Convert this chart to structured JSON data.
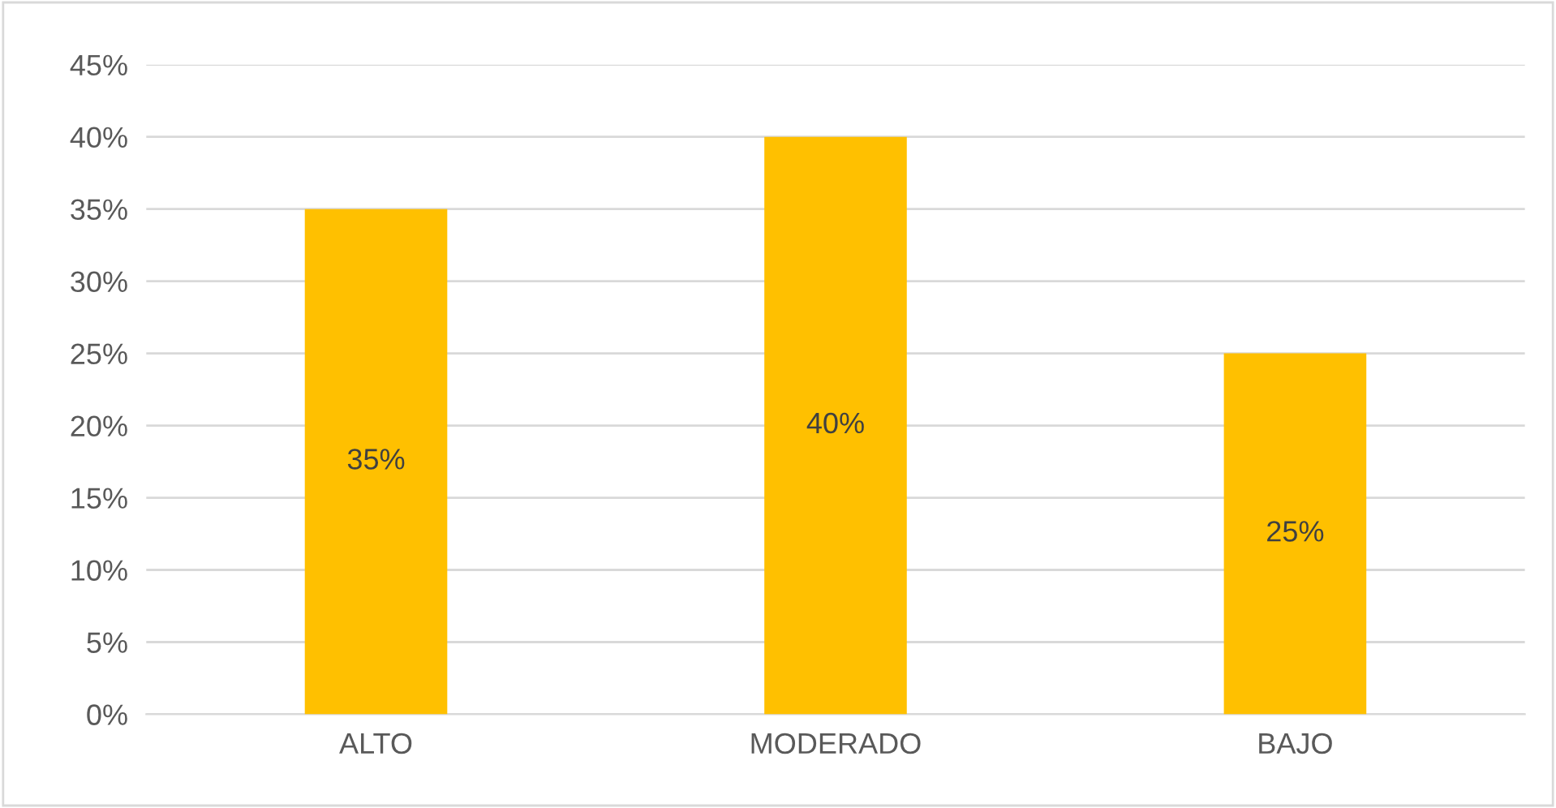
{
  "chart_data": {
    "type": "bar",
    "categories": [
      "ALTO",
      "MODERADO",
      "BAJO"
    ],
    "values": [
      35,
      40,
      25
    ],
    "color": "#ffc000",
    "value_labels": [
      "35%",
      "40%",
      "25%"
    ],
    "ylim": [
      0,
      45
    ],
    "yticks": [
      {
        "value": 0,
        "label": "0%"
      },
      {
        "value": 5,
        "label": "5%"
      },
      {
        "value": 10,
        "label": "10%"
      },
      {
        "value": 15,
        "label": "15%"
      },
      {
        "value": 20,
        "label": "20%"
      },
      {
        "value": 25,
        "label": "25%"
      },
      {
        "value": 30,
        "label": "30%"
      },
      {
        "value": 35,
        "label": "35%"
      },
      {
        "value": 40,
        "label": "40%"
      },
      {
        "value": 45,
        "label": "45%"
      }
    ],
    "grid": "y",
    "legend": false
  }
}
